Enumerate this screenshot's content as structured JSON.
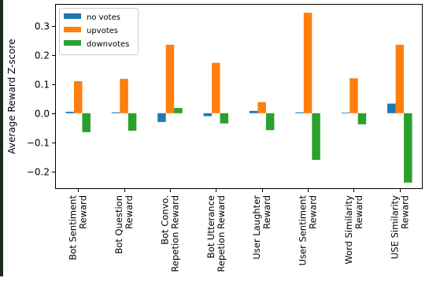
{
  "chart_data": {
    "type": "bar",
    "ylabel": "Average Reward Z-score",
    "ylim": [
      -0.26,
      0.375
    ],
    "yticks": [
      -0.2,
      -0.1,
      0.0,
      0.1,
      0.2,
      0.3
    ],
    "ytick_labels": [
      "−0.2",
      "−0.1",
      "0.0",
      "0.1",
      "0.2",
      "0.3"
    ],
    "categories": [
      [
        "Bot Sentiment",
        "Reward"
      ],
      [
        "Bot Question",
        "Reward"
      ],
      [
        "Bot Convo.",
        "Repetion Reward"
      ],
      [
        "Bot Utterance",
        "Repetion Reward"
      ],
      [
        "User Laughter",
        "Reward"
      ],
      [
        "User Sentiment",
        "Reward"
      ],
      [
        "Word Similarity",
        "Reward"
      ],
      [
        "USE Similarity",
        "Reward"
      ]
    ],
    "series": [
      {
        "name": "no votes",
        "color": "#1f77b4",
        "values": [
          0.005,
          0.003,
          -0.03,
          -0.01,
          0.008,
          0.003,
          0.002,
          0.033
        ]
      },
      {
        "name": "upvotes",
        "color": "#ff7f0e",
        "values": [
          0.11,
          0.118,
          0.235,
          0.173,
          0.038,
          0.345,
          0.12,
          0.235
        ]
      },
      {
        "name": "downvotes",
        "color": "#2ca02c",
        "values": [
          -0.065,
          -0.06,
          0.018,
          -0.035,
          -0.058,
          -0.16,
          -0.038,
          -0.238
        ]
      }
    ],
    "legend_position": "top-left",
    "grid": false
  }
}
